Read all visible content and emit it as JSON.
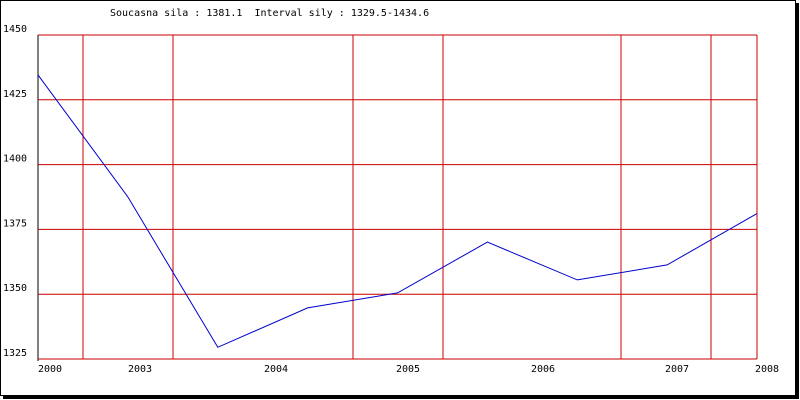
{
  "chart_data": {
    "type": "line",
    "title": "Soucasna sila : 1381.1  Interval sily : 1329.5-1434.6",
    "x_labels": [
      "2000",
      "2003",
      "2004",
      "2005",
      "2006",
      "2007",
      "2008"
    ],
    "series": [
      {
        "color": "#0000cc",
        "values": [
          1434.6,
          1387.5,
          1329.5,
          1344.7,
          1350.5,
          1370.1,
          1355.5,
          1361.3,
          1381.1
        ]
      }
    ],
    "ylim": [
      1325,
      1450
    ],
    "yticks": [
      1325,
      1350,
      1375,
      1400,
      1425,
      1450
    ],
    "grid": true,
    "grid_color": "#cc0000"
  }
}
